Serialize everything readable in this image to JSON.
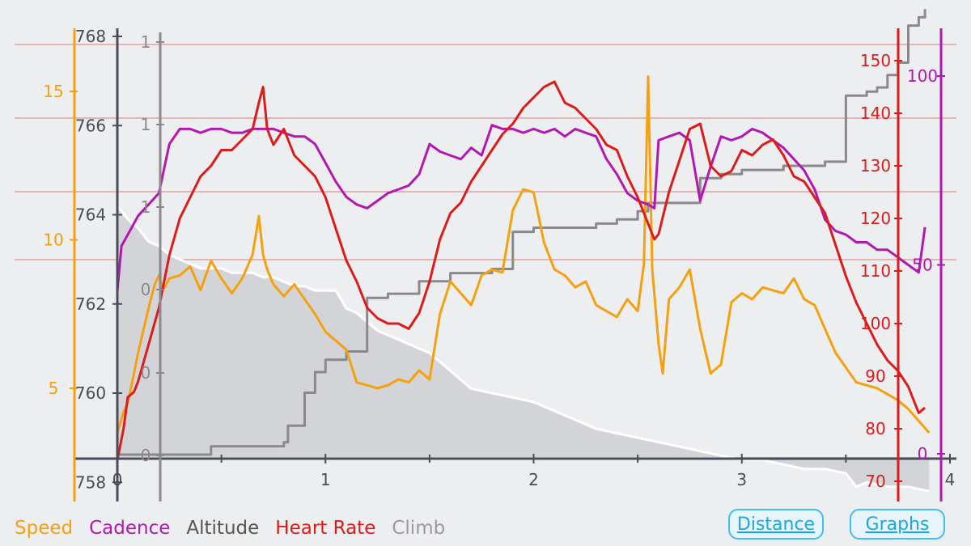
{
  "legend": {
    "speed": "Speed",
    "cadence": "Cadence",
    "altitude": "Altitude",
    "heart_rate": "Heart Rate",
    "climb": "Climb"
  },
  "buttons": {
    "distance": "Distance",
    "graphs": "Graphs"
  },
  "colors": {
    "speed": "#f5a00f",
    "cadence": "#b317b3",
    "altitude": "#8a8a8c",
    "heart_rate": "#dd1b1b",
    "climb": "#9a9a9e",
    "background": "#eceef0",
    "button": "#1aa8e0"
  },
  "chart_data": {
    "type": "line",
    "x_axis": {
      "ticks": [
        "0",
        "1",
        "2",
        "3",
        "4"
      ],
      "range": [
        0,
        4
      ]
    },
    "axes": {
      "speed": {
        "ticks": [
          "5",
          "10",
          "15"
        ],
        "range": [
          2.7,
          16.5
        ]
      },
      "altitude": {
        "ticks": [
          "758",
          "760",
          "762",
          "764",
          "766",
          "768"
        ],
        "range": [
          758,
          768
        ]
      },
      "climb": {
        "ticks": [
          "0",
          "0",
          "0",
          "1",
          "1",
          "1"
        ],
        "range": [
          0,
          1
        ]
      },
      "heart_rate": {
        "ticks": [
          "70",
          "80",
          "90",
          "100",
          "110",
          "120",
          "130",
          "140",
          "150"
        ],
        "range": [
          69,
          154
        ]
      },
      "cadence": {
        "ticks": [
          "0",
          "50",
          "100"
        ],
        "range": [
          -1,
          110
        ]
      }
    },
    "series": [
      {
        "name": "Speed",
        "axis": "speed",
        "color": "#f5a00f",
        "x": [
          0,
          0.03,
          0.05,
          0.08,
          0.1,
          0.12,
          0.15,
          0.18,
          0.2,
          0.22,
          0.25,
          0.3,
          0.35,
          0.4,
          0.45,
          0.5,
          0.55,
          0.6,
          0.65,
          0.68,
          0.7,
          0.72,
          0.75,
          0.8,
          0.85,
          0.9,
          0.95,
          1.0,
          1.05,
          1.1,
          1.15,
          1.2,
          1.25,
          1.3,
          1.35,
          1.4,
          1.45,
          1.5,
          1.55,
          1.6,
          1.65,
          1.7,
          1.75,
          1.8,
          1.85,
          1.9,
          1.95,
          2.0,
          2.05,
          2.1,
          2.15,
          2.2,
          2.25,
          2.3,
          2.35,
          2.4,
          2.45,
          2.5,
          2.53,
          2.55,
          2.57,
          2.6,
          2.62,
          2.65,
          2.7,
          2.75,
          2.8,
          2.85,
          2.9,
          2.95,
          3.0,
          3.05,
          3.1,
          3.15,
          3.2,
          3.25,
          3.3,
          3.35,
          3.4,
          3.45,
          3.5,
          3.55,
          3.6,
          3.65,
          3.7,
          3.75,
          3.8,
          3.85,
          3.9
        ],
        "y": [
          3.5,
          4.2,
          4.5,
          5.5,
          6.2,
          6.8,
          7.7,
          8.5,
          8.8,
          8.3,
          8.7,
          8.8,
          9.1,
          8.3,
          9.3,
          8.7,
          8.2,
          8.7,
          9.5,
          10.8,
          9.5,
          9.0,
          8.5,
          8.1,
          8.5,
          8.0,
          7.5,
          6.9,
          6.6,
          6.3,
          5.2,
          5.1,
          5.0,
          5.1,
          5.3,
          5.2,
          5.6,
          5.3,
          7.5,
          8.6,
          8.2,
          7.8,
          8.8,
          9.0,
          8.9,
          11.0,
          11.7,
          11.6,
          9.9,
          9.0,
          8.8,
          8.4,
          8.6,
          7.8,
          7.6,
          7.4,
          8.0,
          7.6,
          9.2,
          15.5,
          9.0,
          6.5,
          5.5,
          8.0,
          8.4,
          9.0,
          7.0,
          5.5,
          5.8,
          7.9,
          8.2,
          8.0,
          8.4,
          8.3,
          8.2,
          8.7,
          8.0,
          7.8,
          7.0,
          6.2,
          5.7,
          5.2,
          5.1,
          5.0,
          4.8,
          4.6,
          4.3,
          3.9,
          3.5
        ]
      },
      {
        "name": "Cadence",
        "axis": "cadence",
        "color": "#b317b3",
        "x": [
          0,
          0.02,
          0.05,
          0.1,
          0.15,
          0.2,
          0.25,
          0.3,
          0.35,
          0.4,
          0.45,
          0.5,
          0.55,
          0.6,
          0.65,
          0.7,
          0.75,
          0.8,
          0.85,
          0.9,
          0.95,
          1.0,
          1.05,
          1.1,
          1.15,
          1.2,
          1.25,
          1.3,
          1.35,
          1.4,
          1.45,
          1.5,
          1.55,
          1.6,
          1.65,
          1.7,
          1.75,
          1.8,
          1.85,
          1.9,
          1.95,
          2.0,
          2.05,
          2.1,
          2.15,
          2.2,
          2.25,
          2.3,
          2.35,
          2.4,
          2.45,
          2.5,
          2.55,
          2.58,
          2.6,
          2.65,
          2.7,
          2.75,
          2.8,
          2.85,
          2.9,
          2.95,
          3.0,
          3.05,
          3.1,
          3.15,
          3.2,
          3.25,
          3.3,
          3.35,
          3.4,
          3.45,
          3.5,
          3.55,
          3.6,
          3.65,
          3.7,
          3.75,
          3.8,
          3.85,
          3.88
        ],
        "y": [
          43,
          55,
          58,
          63,
          66,
          69,
          82,
          86,
          86,
          85,
          86,
          86,
          85,
          85,
          86,
          86,
          86,
          85,
          84,
          84,
          82,
          77,
          72,
          68,
          66,
          65,
          67,
          69,
          70,
          71,
          74,
          82,
          80,
          79,
          78,
          81,
          79,
          87,
          86,
          86,
          85,
          86,
          85,
          86,
          84,
          86,
          85,
          84,
          78,
          74,
          69,
          67,
          66,
          65,
          83,
          84,
          85,
          83,
          67,
          76,
          84,
          83,
          84,
          86,
          85,
          83,
          81,
          78,
          75,
          70,
          62,
          59,
          58,
          56,
          56,
          54,
          54,
          52,
          50,
          48,
          60
        ]
      },
      {
        "name": "Altitude",
        "axis": "altitude",
        "color": "#ffffff",
        "fill": true,
        "x": [
          0,
          0.05,
          0.1,
          0.15,
          0.2,
          0.25,
          0.3,
          0.35,
          0.4,
          0.45,
          0.5,
          0.55,
          0.6,
          0.65,
          0.7,
          0.75,
          0.8,
          0.85,
          0.9,
          0.95,
          1.0,
          1.05,
          1.1,
          1.15,
          1.2,
          1.25,
          1.3,
          1.35,
          1.4,
          1.45,
          1.5,
          1.6,
          1.7,
          1.8,
          1.9,
          2.0,
          2.1,
          2.2,
          2.3,
          2.4,
          2.5,
          2.6,
          2.7,
          2.8,
          2.9,
          3.0,
          3.1,
          3.2,
          3.3,
          3.4,
          3.5,
          3.55,
          3.6,
          3.7,
          3.8,
          3.9
        ],
        "y": [
          764.2,
          763.9,
          763.7,
          763.4,
          763.3,
          763.1,
          763.0,
          762.9,
          762.8,
          762.8,
          762.8,
          762.7,
          762.7,
          762.7,
          762.6,
          762.6,
          762.5,
          762.4,
          762.4,
          762.3,
          762.3,
          762.3,
          761.9,
          761.8,
          761.6,
          761.4,
          761.3,
          761.2,
          761.1,
          761.0,
          760.9,
          760.5,
          760.1,
          760.0,
          759.9,
          759.8,
          759.6,
          759.4,
          759.2,
          759.1,
          759.0,
          758.9,
          758.8,
          758.7,
          758.6,
          758.5,
          758.5,
          758.4,
          758.3,
          758.3,
          758.2,
          757.9,
          758.0,
          757.9,
          757.9,
          757.8
        ]
      },
      {
        "name": "Heart Rate",
        "axis": "heart_rate",
        "color": "#dd1b1b",
        "x": [
          0,
          0.03,
          0.05,
          0.08,
          0.1,
          0.15,
          0.2,
          0.25,
          0.3,
          0.35,
          0.4,
          0.45,
          0.5,
          0.55,
          0.6,
          0.65,
          0.68,
          0.7,
          0.72,
          0.75,
          0.8,
          0.85,
          0.9,
          0.95,
          1.0,
          1.05,
          1.1,
          1.15,
          1.2,
          1.25,
          1.3,
          1.35,
          1.4,
          1.45,
          1.5,
          1.55,
          1.6,
          1.65,
          1.7,
          1.75,
          1.8,
          1.85,
          1.9,
          1.95,
          2.0,
          2.05,
          2.1,
          2.15,
          2.2,
          2.25,
          2.3,
          2.35,
          2.4,
          2.45,
          2.5,
          2.55,
          2.58,
          2.6,
          2.65,
          2.7,
          2.75,
          2.8,
          2.85,
          2.9,
          2.95,
          3.0,
          3.05,
          3.1,
          3.15,
          3.2,
          3.25,
          3.3,
          3.35,
          3.4,
          3.45,
          3.5,
          3.55,
          3.6,
          3.65,
          3.7,
          3.75,
          3.8,
          3.85,
          3.88
        ],
        "y": [
          74,
          80,
          86,
          87,
          89,
          96,
          103,
          113,
          120,
          124,
          128,
          130,
          133,
          133,
          135,
          137,
          142,
          145,
          137,
          134,
          137,
          132,
          130,
          128,
          124,
          118,
          112,
          108,
          103,
          101,
          100,
          100,
          99,
          102,
          108,
          116,
          121,
          123,
          127,
          130,
          133,
          136,
          138,
          141,
          143,
          145,
          146,
          142,
          141,
          139,
          137,
          134,
          133,
          128,
          124,
          119,
          116,
          117,
          125,
          131,
          137,
          138,
          130,
          128,
          129,
          133,
          132,
          134,
          135,
          132,
          128,
          127,
          124,
          121,
          115,
          109,
          104,
          100,
          96,
          93,
          91,
          88,
          83,
          84
        ]
      },
      {
        "name": "Climb",
        "axis": "climb",
        "color": "#8a8a8c",
        "step": true,
        "x": [
          0,
          0.3,
          0.45,
          0.5,
          0.8,
          0.82,
          0.9,
          0.95,
          1.0,
          1.1,
          1.2,
          1.3,
          1.45,
          1.6,
          1.8,
          1.9,
          2.0,
          2.1,
          2.2,
          2.3,
          2.4,
          2.5,
          2.55,
          2.6,
          2.7,
          2.8,
          2.9,
          3.0,
          3.1,
          3.2,
          3.3,
          3.4,
          3.5,
          3.6,
          3.65,
          3.7,
          3.75,
          3.8,
          3.85,
          3.88
        ],
        "y": [
          0,
          0,
          0.02,
          0.02,
          0.03,
          0.07,
          0.15,
          0.2,
          0.23,
          0.25,
          0.38,
          0.39,
          0.42,
          0.44,
          0.45,
          0.54,
          0.55,
          0.55,
          0.55,
          0.56,
          0.57,
          0.59,
          0.61,
          0.61,
          0.61,
          0.67,
          0.68,
          0.69,
          0.69,
          0.7,
          0.7,
          0.71,
          0.87,
          0.88,
          0.89,
          0.92,
          0.95,
          1.04,
          1.06,
          1.08
        ]
      }
    ],
    "grid": true,
    "legend": "bottom-left"
  }
}
